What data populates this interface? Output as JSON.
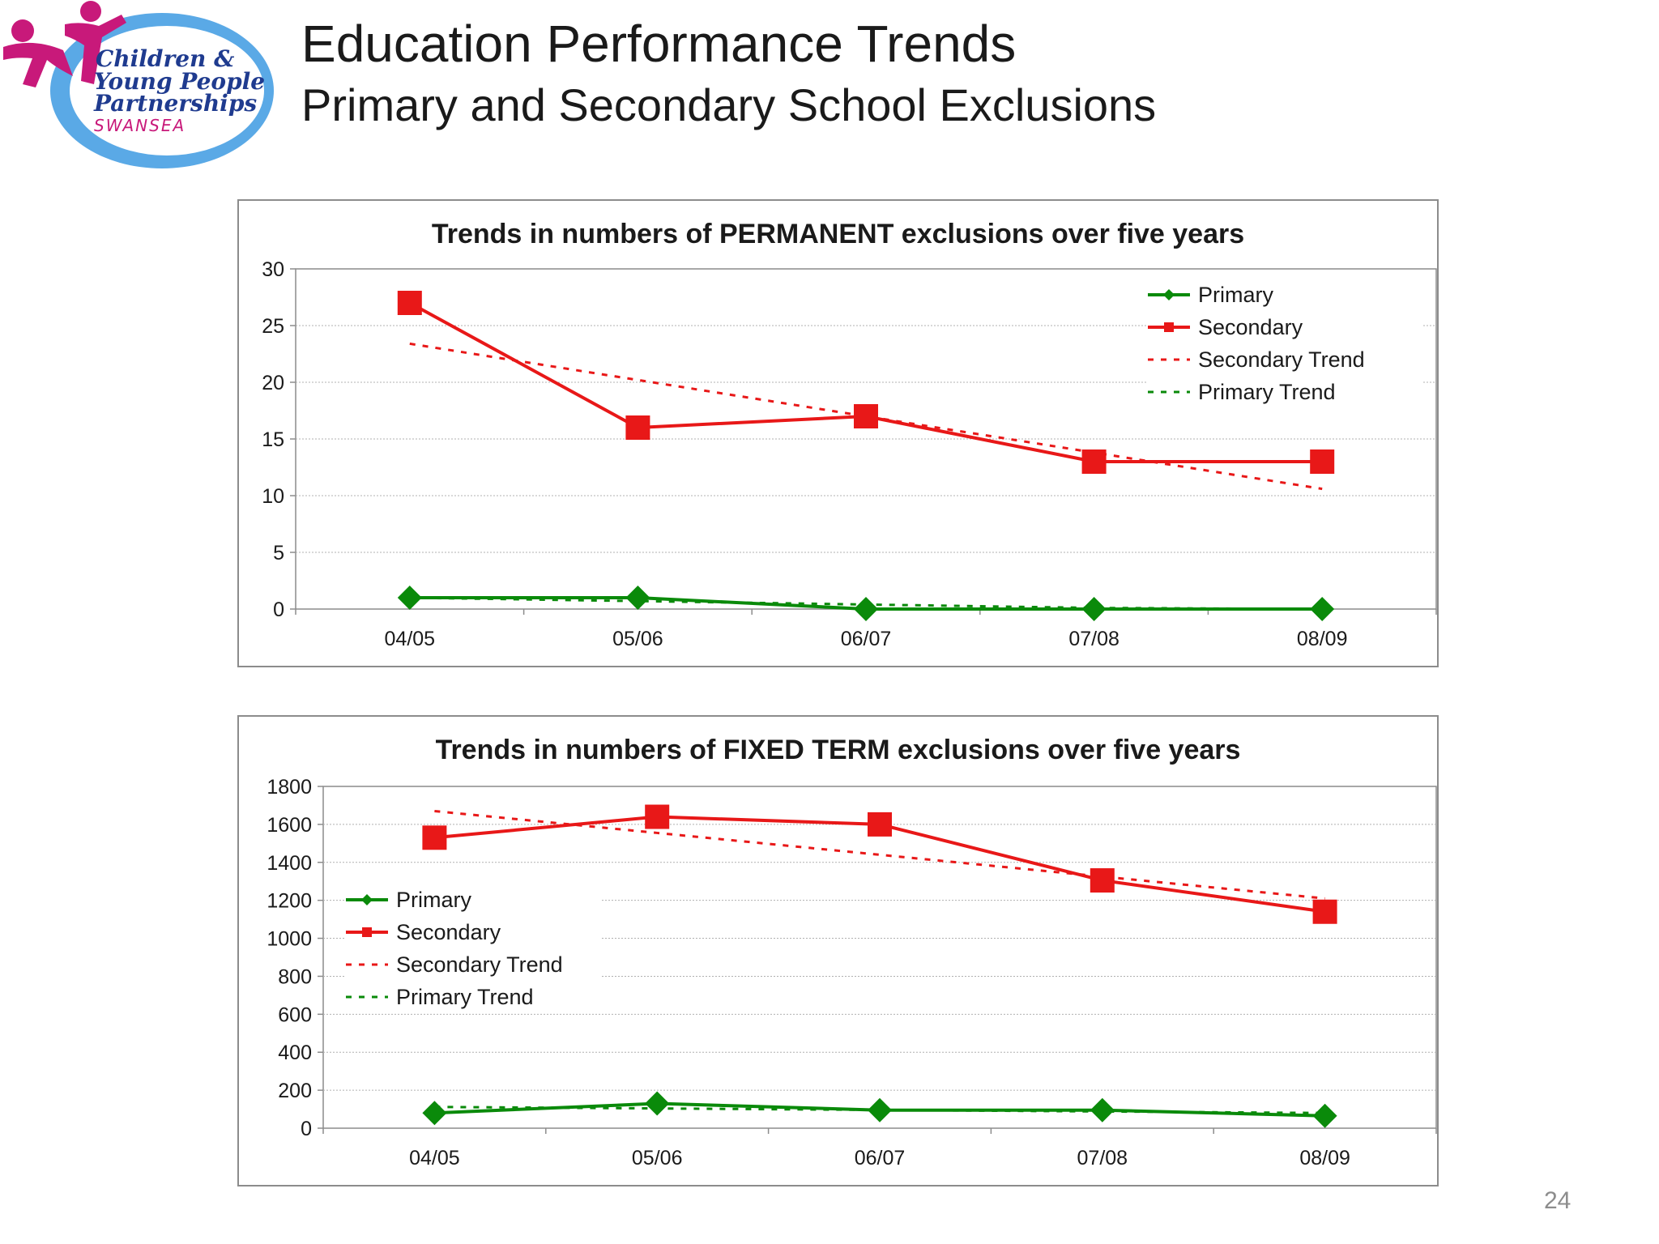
{
  "header": {
    "title": "Education Performance Trends",
    "subtitle": "Primary and Secondary School Exclusions"
  },
  "logo": {
    "line1": "Children &",
    "line2": "Young People",
    "line3": "Partnerships",
    "line4": "SWANSEA",
    "colors": {
      "ring": "#5aa9e6",
      "figures": "#c8197a",
      "text": "#1f3b8f",
      "swansea": "#c8197a"
    }
  },
  "page_number": "24",
  "colors": {
    "primary": "#0a8a0a",
    "secondary": "#e81818",
    "grid": "#b0b0b0",
    "axis": "#8c8c8c"
  },
  "chart_data": [
    {
      "type": "line",
      "title": "Trends in numbers of PERMANENT exclusions over five years",
      "categories": [
        "04/05",
        "05/06",
        "06/07",
        "07/08",
        "08/09"
      ],
      "ylim": [
        0,
        30
      ],
      "yticks": [
        0,
        5,
        10,
        15,
        20,
        25,
        30
      ],
      "grid": true,
      "legend_position": "top-right",
      "series": [
        {
          "name": "Primary",
          "values": [
            1,
            1,
            0,
            0,
            0
          ],
          "color": "#0a8a0a",
          "style": "solid",
          "marker": "diamond"
        },
        {
          "name": "Secondary",
          "values": [
            27,
            16,
            17,
            13,
            13
          ],
          "color": "#e81818",
          "style": "solid",
          "marker": "square"
        },
        {
          "name": "Secondary Trend",
          "values": [
            23.4,
            20.2,
            17.0,
            13.8,
            10.6
          ],
          "color": "#e81818",
          "style": "dashed"
        },
        {
          "name": "Primary Trend",
          "values": [
            1.0,
            0.7,
            0.4,
            0.1,
            -0.2
          ],
          "color": "#0a8a0a",
          "style": "dashed"
        }
      ]
    },
    {
      "type": "line",
      "title": "Trends in numbers of FIXED TERM exclusions over five years",
      "categories": [
        "04/05",
        "05/06",
        "06/07",
        "07/08",
        "08/09"
      ],
      "ylim": [
        0,
        1800
      ],
      "yticks": [
        0,
        200,
        400,
        600,
        800,
        1000,
        1200,
        1400,
        1600,
        1800
      ],
      "grid": true,
      "legend_position": "middle-left",
      "series": [
        {
          "name": "Primary",
          "values": [
            80,
            130,
            95,
            95,
            65
          ],
          "color": "#0a8a0a",
          "style": "solid",
          "marker": "diamond"
        },
        {
          "name": "Secondary",
          "values": [
            1530,
            1640,
            1600,
            1305,
            1140
          ],
          "color": "#e81818",
          "style": "solid",
          "marker": "square"
        },
        {
          "name": "Secondary Trend",
          "values": [
            1670,
            1555,
            1440,
            1325,
            1210
          ],
          "color": "#e81818",
          "style": "dashed"
        },
        {
          "name": "Primary Trend",
          "values": [
            112,
            104,
            96,
            88,
            80
          ],
          "color": "#0a8a0a",
          "style": "dashed"
        }
      ]
    }
  ]
}
